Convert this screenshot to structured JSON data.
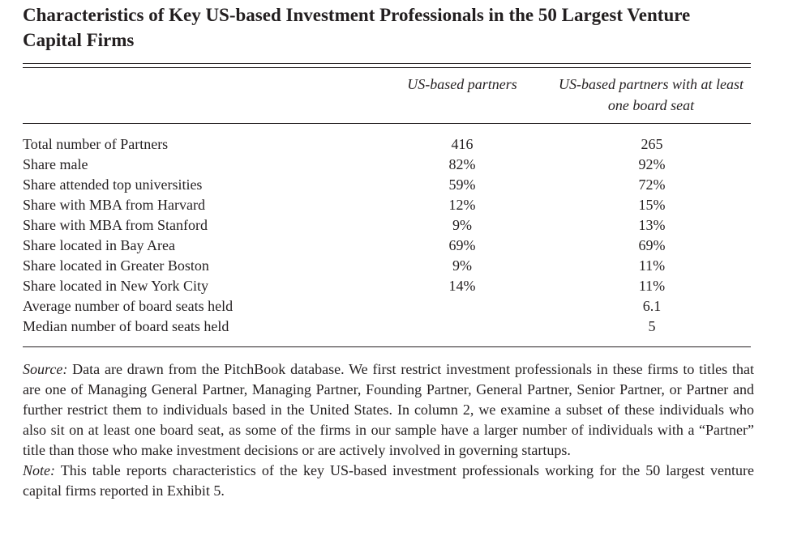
{
  "title": "Characteristics of Key US-based Investment Professionals in the 50 Largest Venture Capital Firms",
  "columns": {
    "col1": "US-based partners",
    "col2": "US-based partners with at least one board seat"
  },
  "rows": [
    {
      "label": "Total number of Partners",
      "v1": "416",
      "v2": "265"
    },
    {
      "label": "Share male",
      "v1": "82%",
      "v2": "92%"
    },
    {
      "label": "Share attended top universities",
      "v1": "59%",
      "v2": "72%"
    },
    {
      "label": "Share with MBA from Harvard",
      "v1": "12%",
      "v2": "15%"
    },
    {
      "label": "Share with MBA from Stanford",
      "v1": "9%",
      "v2": "13%"
    },
    {
      "label": "Share located in Bay Area",
      "v1": "69%",
      "v2": "69%"
    },
    {
      "label": "Share located in Greater Boston",
      "v1": "9%",
      "v2": "11%"
    },
    {
      "label": "Share located in New York City",
      "v1": "14%",
      "v2": "11%"
    },
    {
      "label": "Average number of board seats held",
      "v1": "",
      "v2": "6.1"
    },
    {
      "label": "Median number of board seats held",
      "v1": "",
      "v2": "5"
    }
  ],
  "source": {
    "label": "Source:",
    "text": "Data are drawn from the PitchBook database. We first restrict investment professionals in these firms to titles that are one of Managing General Partner, Managing Partner, Founding Partner, General Partner, Senior Partner, or Partner and further restrict them to individuals based in the United States. In column 2, we examine a subset of these individuals who also sit on at least one board seat, as some of the firms in our sample have a larger number of individuals with a “Partner” title than those who make investment decisions or are actively involved in governing startups."
  },
  "note": {
    "label": "Note:",
    "text": "This table reports characteristics of the key US-based investment professionals working for the 50 largest venture capital firms reported in Exhibit 5."
  }
}
